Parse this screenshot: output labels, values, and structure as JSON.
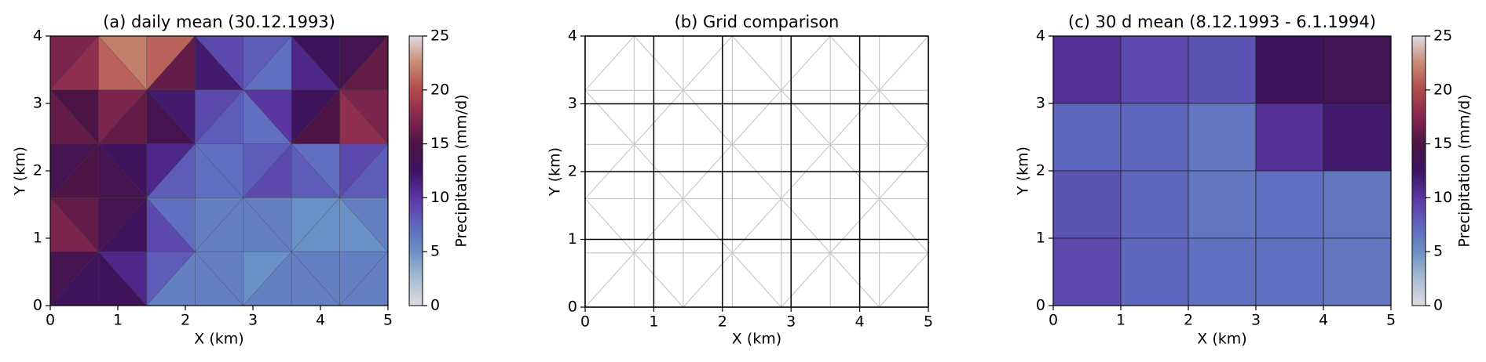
{
  "chart_data": [
    {
      "type": "mesh",
      "title": "(a) daily mean (30.12.1993)",
      "xlabel": "X (km)",
      "ylabel": "Y (km)",
      "xlim": [
        0,
        5
      ],
      "ylim": [
        0,
        4
      ],
      "xticks": [
        0,
        1,
        2,
        3,
        4,
        5
      ],
      "yticks": [
        0,
        1,
        2,
        3,
        4
      ],
      "values": [
        [
          17,
          18,
          21,
          22,
          21,
          16,
          12,
          9,
          8,
          7,
          11,
          13,
          14,
          16
        ],
        [
          16,
          15,
          17,
          16,
          14,
          12,
          9,
          8,
          7,
          10,
          13,
          15,
          18,
          17
        ],
        [
          14,
          15,
          14,
          13,
          11,
          8,
          7,
          7,
          8,
          9,
          8,
          7,
          9,
          8
        ],
        [
          17,
          16,
          14,
          13,
          9,
          7,
          6,
          6,
          6,
          6,
          5,
          5,
          5,
          6
        ],
        [
          14,
          13,
          13,
          11,
          8,
          6,
          6,
          6,
          5,
          6,
          6,
          6,
          6,
          6
        ]
      ],
      "colormap": [
        "#e2d9e2",
        "#a6bdd1",
        "#6a91c5",
        "#5e66bd",
        "#5a36a2",
        "#3c1361",
        "#4b1444",
        "#87284f",
        "#b1494d",
        "#c88a72",
        "#e2d9e2"
      ],
      "colorbar": {
        "label": "Precipitation (mm/d)",
        "lim": [
          0,
          25
        ],
        "ticks": [
          0,
          5,
          10,
          15,
          20,
          25
        ]
      }
    },
    {
      "type": "grid",
      "title": "(b) Grid comparison",
      "xlabel": "X (km)",
      "ylabel": "Y (km)",
      "xlim": [
        0,
        5
      ],
      "ylim": [
        0,
        4
      ],
      "xticks": [
        0,
        1,
        2,
        3,
        4,
        5
      ],
      "yticks": [
        0,
        1,
        2,
        3,
        4
      ],
      "grid": true
    },
    {
      "type": "heatmap",
      "title": "(c) 30 d mean (8.12.1993 - 6.1.1994)",
      "xlabel": "X (km)",
      "ylabel": "Y (km)",
      "xlim": [
        0,
        5
      ],
      "ylim": [
        0,
        4
      ],
      "xticks": [
        0,
        1,
        2,
        3,
        4,
        5
      ],
      "yticks": [
        0,
        1,
        2,
        3,
        4
      ],
      "values": [
        [
          10.5,
          9,
          8.5,
          13,
          13.5
        ],
        [
          7.5,
          7.5,
          6.5,
          10.5,
          12
        ],
        [
          8.5,
          7.5,
          6.5,
          7,
          6.5
        ],
        [
          9,
          7.5,
          7,
          7,
          6.5
        ]
      ],
      "colormap": [
        "#e2d9e2",
        "#a6bdd1",
        "#6a91c5",
        "#5e66bd",
        "#5a36a2",
        "#3c1361",
        "#4b1444",
        "#87284f",
        "#b1494d",
        "#c88a72",
        "#e2d9e2"
      ],
      "colorbar": {
        "label": "Precipitation (mm/d)",
        "lim": [
          0,
          25
        ],
        "ticks": [
          0,
          5,
          10,
          15,
          20,
          25
        ]
      }
    }
  ]
}
